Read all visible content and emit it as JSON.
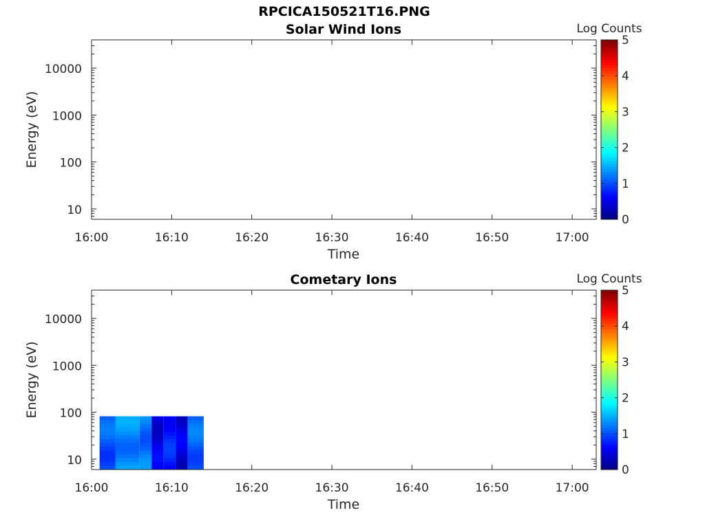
{
  "figure": {
    "title": "RPCICA150521T16.PNG"
  },
  "chart_data": [
    {
      "type": "heatmap",
      "title": "Solar Wind Ions",
      "xlabel": "Time",
      "ylabel": "Energy (eV)",
      "x_ticks": [
        "16:00",
        "16:10",
        "16:20",
        "16:30",
        "16:40",
        "16:50",
        "17:00"
      ],
      "y_ticks": [
        "10",
        "100",
        "1000",
        "10000"
      ],
      "y_scale": "log",
      "xlim": [
        "16:00",
        "17:03"
      ],
      "ylim": [
        6,
        40000
      ],
      "colorbar": {
        "label": "Log Counts",
        "ticks": [
          "0",
          "1",
          "2",
          "3",
          "4",
          "5"
        ],
        "range": [
          0,
          5
        ],
        "colormap": "jet"
      },
      "cells": []
    },
    {
      "type": "heatmap",
      "title": "Cometary Ions",
      "xlabel": "Time",
      "ylabel": "Energy (eV)",
      "x_ticks": [
        "16:00",
        "16:10",
        "16:20",
        "16:30",
        "16:40",
        "16:50",
        "17:00"
      ],
      "y_ticks": [
        "10",
        "100",
        "1000",
        "10000"
      ],
      "y_scale": "log",
      "xlim": [
        "16:00",
        "17:03"
      ],
      "ylim": [
        6,
        40000
      ],
      "colorbar": {
        "label": "Log Counts",
        "ticks": [
          "0",
          "1",
          "2",
          "3",
          "4",
          "5"
        ],
        "range": [
          0,
          5
        ],
        "colormap": "jet"
      },
      "energy_range_eV": [
        6,
        82
      ],
      "cells": [
        {
          "t0": "16:01",
          "t1": "16:03",
          "log_counts": 1.05
        },
        {
          "t0": "16:03",
          "t1": "16:06",
          "log_counts": 1.3
        },
        {
          "t0": "16:06",
          "t1": "16:07.5",
          "log_counts": 1.2
        },
        {
          "t0": "16:07.5",
          "t1": "16:09",
          "log_counts": 0.5
        },
        {
          "t0": "16:09",
          "t1": "16:10.5",
          "log_counts": 0.75
        },
        {
          "t0": "16:10.5",
          "t1": "16:12",
          "log_counts": 0.45
        },
        {
          "t0": "16:12",
          "t1": "16:14",
          "log_counts": 1.1
        }
      ]
    }
  ]
}
